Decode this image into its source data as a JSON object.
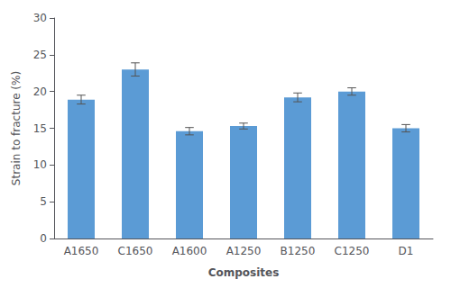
{
  "chart_data": {
    "type": "bar",
    "categories": [
      "A1650",
      "C1650",
      "A1600",
      "A1250",
      "B1250",
      "C1250",
      "D1"
    ],
    "values": [
      18.9,
      23.0,
      14.6,
      15.3,
      19.2,
      20.0,
      15.0
    ],
    "errors": [
      0.6,
      0.9,
      0.5,
      0.4,
      0.6,
      0.5,
      0.5
    ],
    "color": "#5B9BD5",
    "xlabel": "Composites",
    "ylabel": "Strain to fracture (%)",
    "ylim": [
      0,
      30
    ],
    "yticks": [
      0,
      5,
      10,
      15,
      20,
      25,
      30
    ],
    "grid": false
  }
}
